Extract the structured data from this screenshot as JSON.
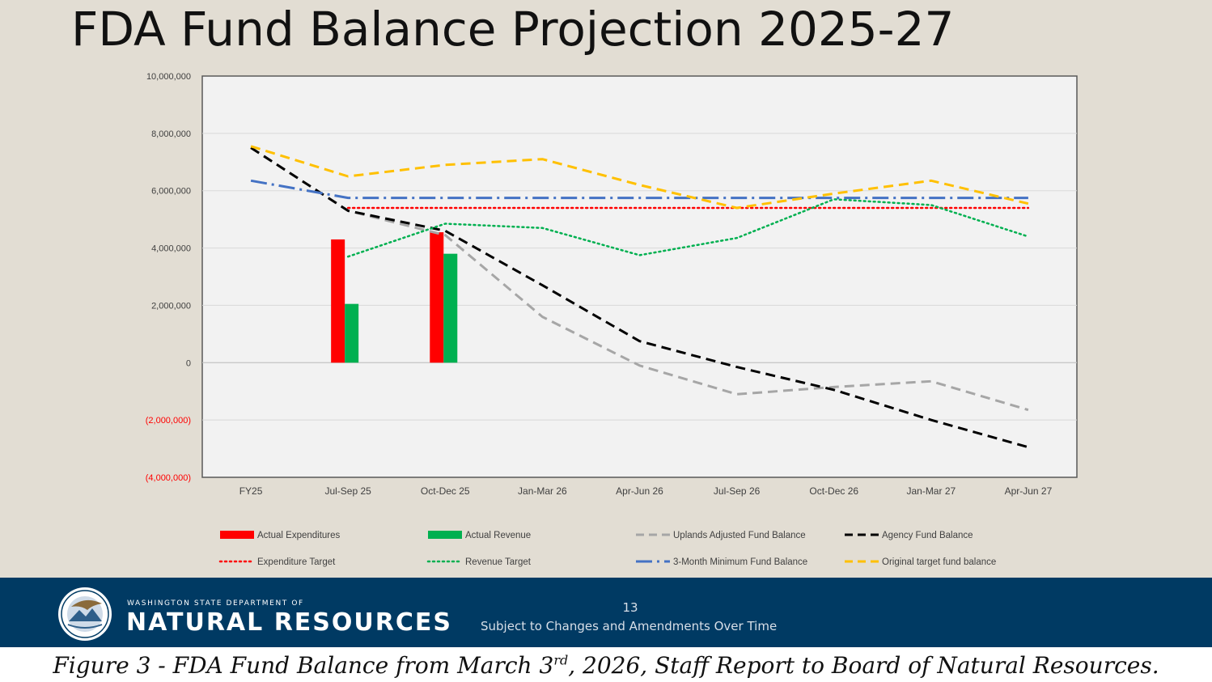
{
  "slide": {
    "title": "FDA Fund Balance Projection 2025-27",
    "footer": {
      "org_line1": "WASHINGTON STATE DEPARTMENT OF",
      "org_line2": "NATURAL RESOURCES",
      "page_number": "13",
      "note": "Subject to Changes and Amendments Over Time",
      "logo_icon": "dnr-seal-icon"
    }
  },
  "caption": {
    "prefix": "Figure 3 - FDA Fund Balance from March 3",
    "superscript": "rd",
    "suffix": ", 2026, Staff Report to Board of Natural Resources."
  },
  "chart_data": {
    "type": "bar",
    "title": "FDA Fund Balance Projection 2025-27",
    "xlabel": "",
    "ylabel": "",
    "ylim": [
      -4000000,
      10000000
    ],
    "grid": true,
    "legend_position": "bottom",
    "categories": [
      "FY25",
      "Jul-Sep 25",
      "Oct-Dec 25",
      "Jan-Mar 26",
      "Apr-Jun 26",
      "Jul-Sep 26",
      "Oct-Dec 26",
      "Jan-Mar 27",
      "Apr-Jun 27"
    ],
    "y_ticks": [
      {
        "value": 10000000,
        "label": "10,000,000",
        "negative": false
      },
      {
        "value": 8000000,
        "label": "8,000,000",
        "negative": false
      },
      {
        "value": 6000000,
        "label": "6,000,000",
        "negative": false
      },
      {
        "value": 4000000,
        "label": "4,000,000",
        "negative": false
      },
      {
        "value": 2000000,
        "label": "2,000,000",
        "negative": false
      },
      {
        "value": 0,
        "label": "0",
        "negative": false
      },
      {
        "value": -2000000,
        "label": "(2,000,000)",
        "negative": true
      },
      {
        "value": -4000000,
        "label": "(4,000,000)",
        "negative": true
      }
    ],
    "negative_tick_color": "#ff0000",
    "series": [
      {
        "name": "Actual Expenditures",
        "kind": "bar",
        "color": "#ff0000",
        "values": [
          null,
          4300000,
          4550000,
          null,
          null,
          null,
          null,
          null,
          null
        ]
      },
      {
        "name": "Actual Revenue",
        "kind": "bar",
        "color": "#00b050",
        "values": [
          null,
          2050000,
          3800000,
          null,
          null,
          null,
          null,
          null,
          null
        ]
      },
      {
        "name": "Uplands Adjusted Fund Balance",
        "kind": "line",
        "style": "dash",
        "color": "#a6a6a6",
        "values": [
          7500000,
          5300000,
          4450000,
          1600000,
          -100000,
          -1100000,
          -850000,
          -650000,
          -1650000
        ]
      },
      {
        "name": "Agency Fund Balance",
        "kind": "line",
        "style": "dash",
        "color": "#000000",
        "values": [
          7500000,
          5300000,
          4600000,
          2700000,
          750000,
          -150000,
          -950000,
          -2000000,
          -2950000
        ]
      },
      {
        "name": "Expenditure Target",
        "kind": "line",
        "style": "dot",
        "color": "#ff0000",
        "values": [
          null,
          5400000,
          5400000,
          5400000,
          5400000,
          5400000,
          5400000,
          5400000,
          5400000
        ]
      },
      {
        "name": "Revenue Target",
        "kind": "line",
        "style": "dot",
        "color": "#00b050",
        "values": [
          null,
          3700000,
          4850000,
          4700000,
          3750000,
          4350000,
          5700000,
          5500000,
          4400000
        ]
      },
      {
        "name": "3-Month Minimum Fund Balance",
        "kind": "line",
        "style": "dashdot",
        "color": "#4472c4",
        "values": [
          6350000,
          5750000,
          5750000,
          5750000,
          5750000,
          5750000,
          5750000,
          5750000,
          5750000
        ]
      },
      {
        "name": "Original target fund balance",
        "kind": "line",
        "style": "dash",
        "color": "#ffc000",
        "values": [
          7550000,
          6500000,
          6900000,
          7100000,
          6200000,
          5400000,
          5900000,
          6350000,
          5550000
        ]
      }
    ],
    "legend_order": [
      "Actual Expenditures",
      "Actual Revenue",
      "Uplands Adjusted Fund Balance",
      "Agency Fund Balance",
      "Expenditure Target",
      "Revenue Target",
      "3-Month Minimum Fund Balance",
      "Original target fund balance"
    ]
  }
}
